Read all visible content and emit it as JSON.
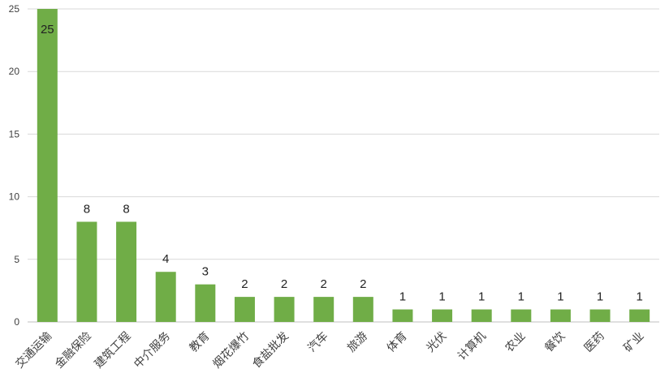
{
  "chart_data": {
    "type": "bar",
    "title": "",
    "xlabel": "",
    "ylabel": "",
    "categories": [
      "交通运输",
      "金融保险",
      "建筑工程",
      "中介服务",
      "教育",
      "烟花爆竹",
      "食盐批发",
      "汽车",
      "旅游",
      "体育",
      "光伏",
      "计算机",
      "农业",
      "餐饮",
      "医药",
      "矿业"
    ],
    "values": [
      25,
      8,
      8,
      4,
      3,
      2,
      2,
      2,
      2,
      1,
      1,
      1,
      1,
      1,
      1,
      1
    ],
    "ylim": [
      0,
      25
    ],
    "yticks": [
      0,
      5,
      10,
      15,
      20,
      25
    ],
    "grid": true,
    "legend": "none",
    "colors": {
      "bar": "#70AD47",
      "grid": "#D9D9D9",
      "axis": "#BFBFBF"
    }
  }
}
